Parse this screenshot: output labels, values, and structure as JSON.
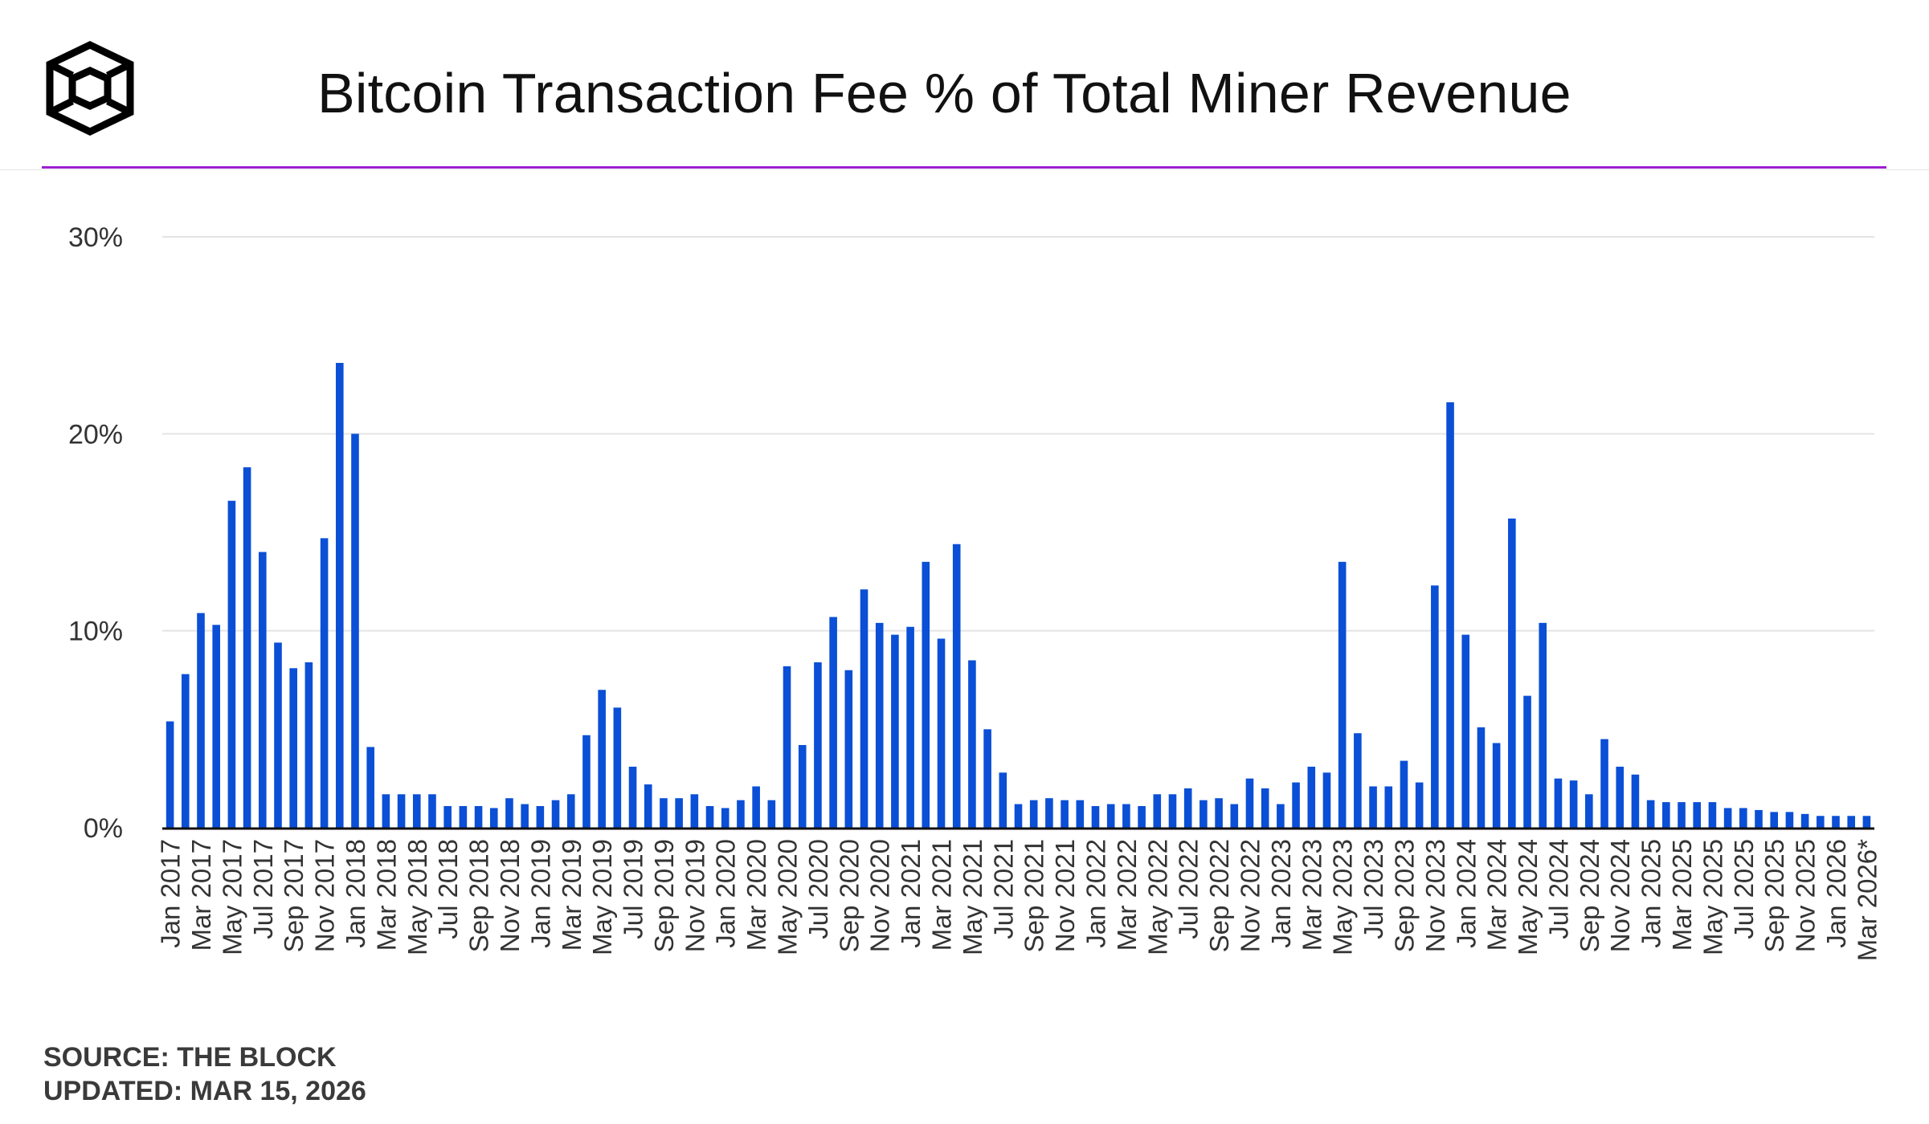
{
  "header": {
    "title": "Bitcoin Transaction Fee % of Total Miner Revenue",
    "logo_icon": "the-block-cube-logo-icon",
    "accent_color": "#9c1fd1"
  },
  "footer": {
    "source": "SOURCE: THE BLOCK",
    "updated": "UPDATED: MAR 15, 2026"
  },
  "chart_data": {
    "type": "bar",
    "title": "Bitcoin Transaction Fee % of Total Miner Revenue",
    "xlabel": "",
    "ylabel": "",
    "ylim": [
      0,
      30
    ],
    "yticks": [
      0,
      10,
      20,
      30
    ],
    "ytick_labels": [
      "0%",
      "10%",
      "20%",
      "30%"
    ],
    "grid": true,
    "bar_color": "#0a4fd6",
    "series": [
      {
        "name": "Transaction fee % of total miner revenue",
        "categories": [
          "Jan 2017",
          "Feb 2017",
          "Mar 2017",
          "Apr 2017",
          "May 2017",
          "Jun 2017",
          "Jul 2017",
          "Aug 2017",
          "Sep 2017",
          "Oct 2017",
          "Nov 2017",
          "Dec 2017",
          "Jan 2018",
          "Feb 2018",
          "Mar 2018",
          "Apr 2018",
          "May 2018",
          "Jun 2018",
          "Jul 2018",
          "Aug 2018",
          "Sep 2018",
          "Oct 2018",
          "Nov 2018",
          "Dec 2018",
          "Jan 2019",
          "Feb 2019",
          "Mar 2019",
          "Apr 2019",
          "May 2019",
          "Jun 2019",
          "Jul 2019",
          "Aug 2019",
          "Sep 2019",
          "Oct 2019",
          "Nov 2019",
          "Dec 2019",
          "Jan 2020",
          "Feb 2020",
          "Mar 2020",
          "Apr 2020",
          "May 2020",
          "Jun 2020",
          "Jul 2020",
          "Aug 2020",
          "Sep 2020",
          "Oct 2020",
          "Nov 2020",
          "Dec 2020",
          "Jan 2021",
          "Feb 2021",
          "Mar 2021",
          "Apr 2021",
          "May 2021",
          "Jun 2021",
          "Jul 2021",
          "Aug 2021",
          "Sep 2021",
          "Oct 2021",
          "Nov 2021",
          "Dec 2021",
          "Jan 2022",
          "Feb 2022",
          "Mar 2022",
          "Apr 2022",
          "May 2022",
          "Jun 2022",
          "Jul 2022",
          "Aug 2022",
          "Sep 2022",
          "Oct 2022",
          "Nov 2022",
          "Dec 2022",
          "Jan 2023",
          "Feb 2023",
          "Mar 2023",
          "Apr 2023",
          "May 2023",
          "Jun 2023",
          "Jul 2023",
          "Aug 2023",
          "Sep 2023",
          "Oct 2023",
          "Nov 2023",
          "Dec 2023",
          "Jan 2024",
          "Feb 2024",
          "Mar 2024",
          "Apr 2024",
          "May 2024",
          "Jun 2024",
          "Jul 2024",
          "Aug 2024",
          "Sep 2024",
          "Oct 2024",
          "Nov 2024",
          "Dec 2024",
          "Jan 2025",
          "Feb 2025",
          "Mar 2025",
          "Apr 2025",
          "May 2025",
          "Jun 2025",
          "Jul 2025",
          "Aug 2025",
          "Sep 2025",
          "Oct 2025",
          "Nov 2025",
          "Dec 2025",
          "Jan 2026",
          "Feb 2026",
          "Mar 2026*"
        ],
        "values": [
          5.4,
          7.8,
          10.9,
          10.3,
          16.6,
          18.3,
          14.0,
          9.4,
          8.1,
          8.4,
          14.7,
          23.6,
          20.0,
          4.1,
          1.7,
          1.7,
          1.7,
          1.7,
          1.1,
          1.1,
          1.1,
          1.0,
          1.5,
          1.2,
          1.1,
          1.4,
          1.7,
          4.7,
          7.0,
          6.1,
          3.1,
          2.2,
          1.5,
          1.5,
          1.7,
          1.1,
          1.0,
          1.4,
          2.1,
          1.4,
          8.2,
          4.2,
          8.4,
          10.7,
          8.0,
          12.1,
          10.4,
          9.8,
          10.2,
          13.5,
          9.6,
          14.4,
          8.5,
          5.0,
          2.8,
          1.2,
          1.4,
          1.5,
          1.4,
          1.4,
          1.1,
          1.2,
          1.2,
          1.1,
          1.7,
          1.7,
          2.0,
          1.4,
          1.5,
          1.2,
          2.5,
          2.0,
          1.2,
          2.3,
          3.1,
          2.8,
          13.5,
          4.8,
          2.1,
          2.1,
          3.4,
          2.3,
          12.3,
          21.6,
          9.8,
          5.1,
          4.3,
          15.7,
          6.7,
          10.4,
          2.5,
          2.4,
          1.7,
          4.5,
          3.1,
          2.7,
          1.4,
          1.3,
          1.3,
          1.3,
          1.3,
          1.0,
          1.0,
          0.9,
          0.8,
          0.8,
          0.7,
          0.6,
          0.6,
          0.6,
          0.6
        ]
      }
    ],
    "x_tick_labels": [
      "Jan 2017",
      "Mar 2017",
      "May 2017",
      "Jul 2017",
      "Sep 2017",
      "Nov 2017",
      "Jan 2018",
      "Mar 2018",
      "May 2018",
      "Jul 2018",
      "Sep 2018",
      "Nov 2018",
      "Jan 2019",
      "Mar 2019",
      "May 2019",
      "Jul 2019",
      "Sep 2019",
      "Nov 2019",
      "Jan 2020",
      "Mar 2020",
      "May 2020",
      "Jul 2020",
      "Sep 2020",
      "Nov 2020",
      "Jan 2021",
      "Mar 2021",
      "May 2021",
      "Jul 2021",
      "Sep 2021",
      "Nov 2021",
      "Jan 2022",
      "Mar 2022",
      "May 2022",
      "Jul 2022",
      "Sep 2022",
      "Nov 2022",
      "Jan 2023",
      "Mar 2023",
      "May 2023",
      "Jul 2023",
      "Sep 2023",
      "Nov 2023",
      "Jan 2024",
      "Mar 2024",
      "May 2024",
      "Jul 2024",
      "Sep 2024",
      "Nov 2024",
      "Jan 2025",
      "Mar 2025",
      "May 2025",
      "Jul 2025",
      "Sep 2025",
      "Nov 2025",
      "Jan 2026",
      "Mar 2026*"
    ]
  }
}
